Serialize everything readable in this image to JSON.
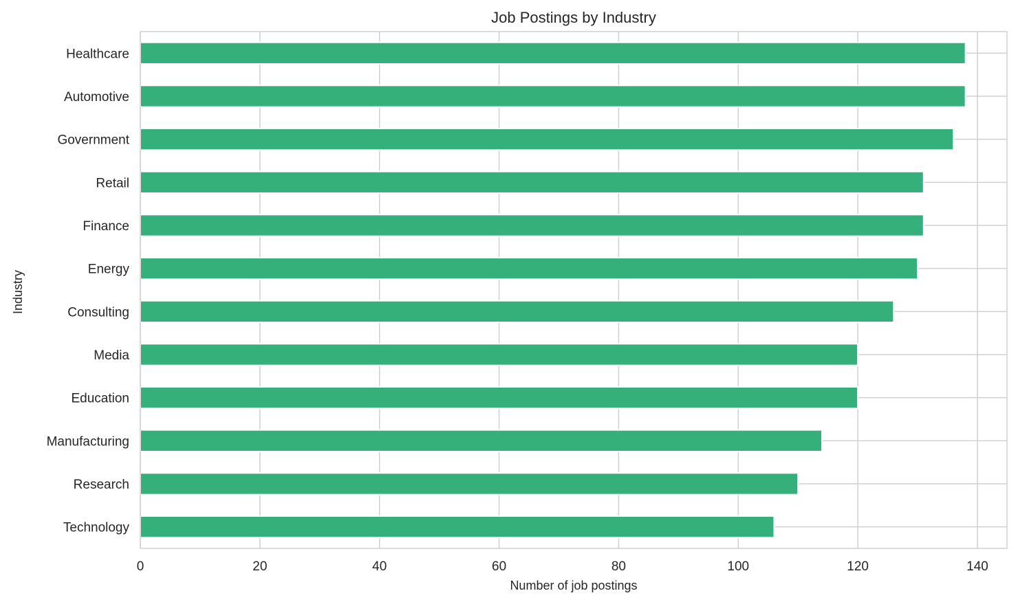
{
  "chart_data": {
    "type": "bar",
    "orientation": "horizontal",
    "title": "Job Postings by Industry",
    "xlabel": "Number of job postings",
    "ylabel": "Industry",
    "xlim": [
      0,
      145
    ],
    "xticks": [
      0,
      20,
      40,
      60,
      80,
      100,
      120,
      140
    ],
    "grid": true,
    "legend": null,
    "bar_color": "#35b07b",
    "categories": [
      "Healthcare",
      "Automotive",
      "Government",
      "Retail",
      "Finance",
      "Energy",
      "Consulting",
      "Media",
      "Education",
      "Manufacturing",
      "Research",
      "Technology"
    ],
    "values": [
      138,
      138,
      136,
      131,
      131,
      130,
      126,
      120,
      120,
      114,
      110,
      106
    ]
  }
}
